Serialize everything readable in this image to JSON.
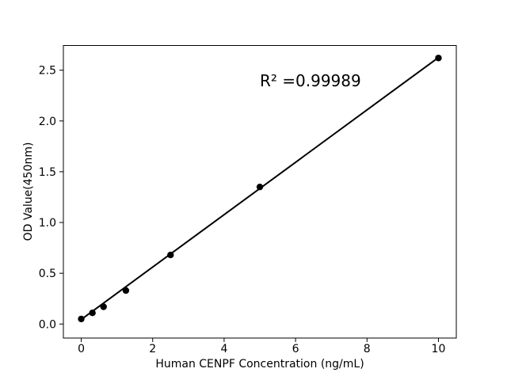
{
  "chart_data": {
    "type": "scatter",
    "title": "",
    "xlabel": "Human CENPF Concentration (ng/mL)",
    "ylabel": "OD Value(450nm)",
    "annotation": "R² =0.99989",
    "x": [
      0,
      0.313,
      0.625,
      1.25,
      2.5,
      5,
      10
    ],
    "y": [
      0.05,
      0.11,
      0.17,
      0.33,
      0.68,
      1.35,
      2.62
    ],
    "fit_line": {
      "x": [
        0,
        10
      ],
      "y": [
        0.045,
        2.625
      ]
    },
    "xticks": [
      "0",
      "2",
      "4",
      "6",
      "8",
      "10"
    ],
    "yticks": [
      "0.0",
      "0.5",
      "1.0",
      "1.5",
      "2.0",
      "2.5"
    ],
    "xlim": [
      -0.5,
      10.5
    ],
    "ylim": [
      -0.138,
      2.743
    ],
    "grid": false,
    "legend": null,
    "marker_color": "#000000",
    "line_color": "#000000",
    "axis_color": "#000000",
    "background_color": "#ffffff"
  }
}
